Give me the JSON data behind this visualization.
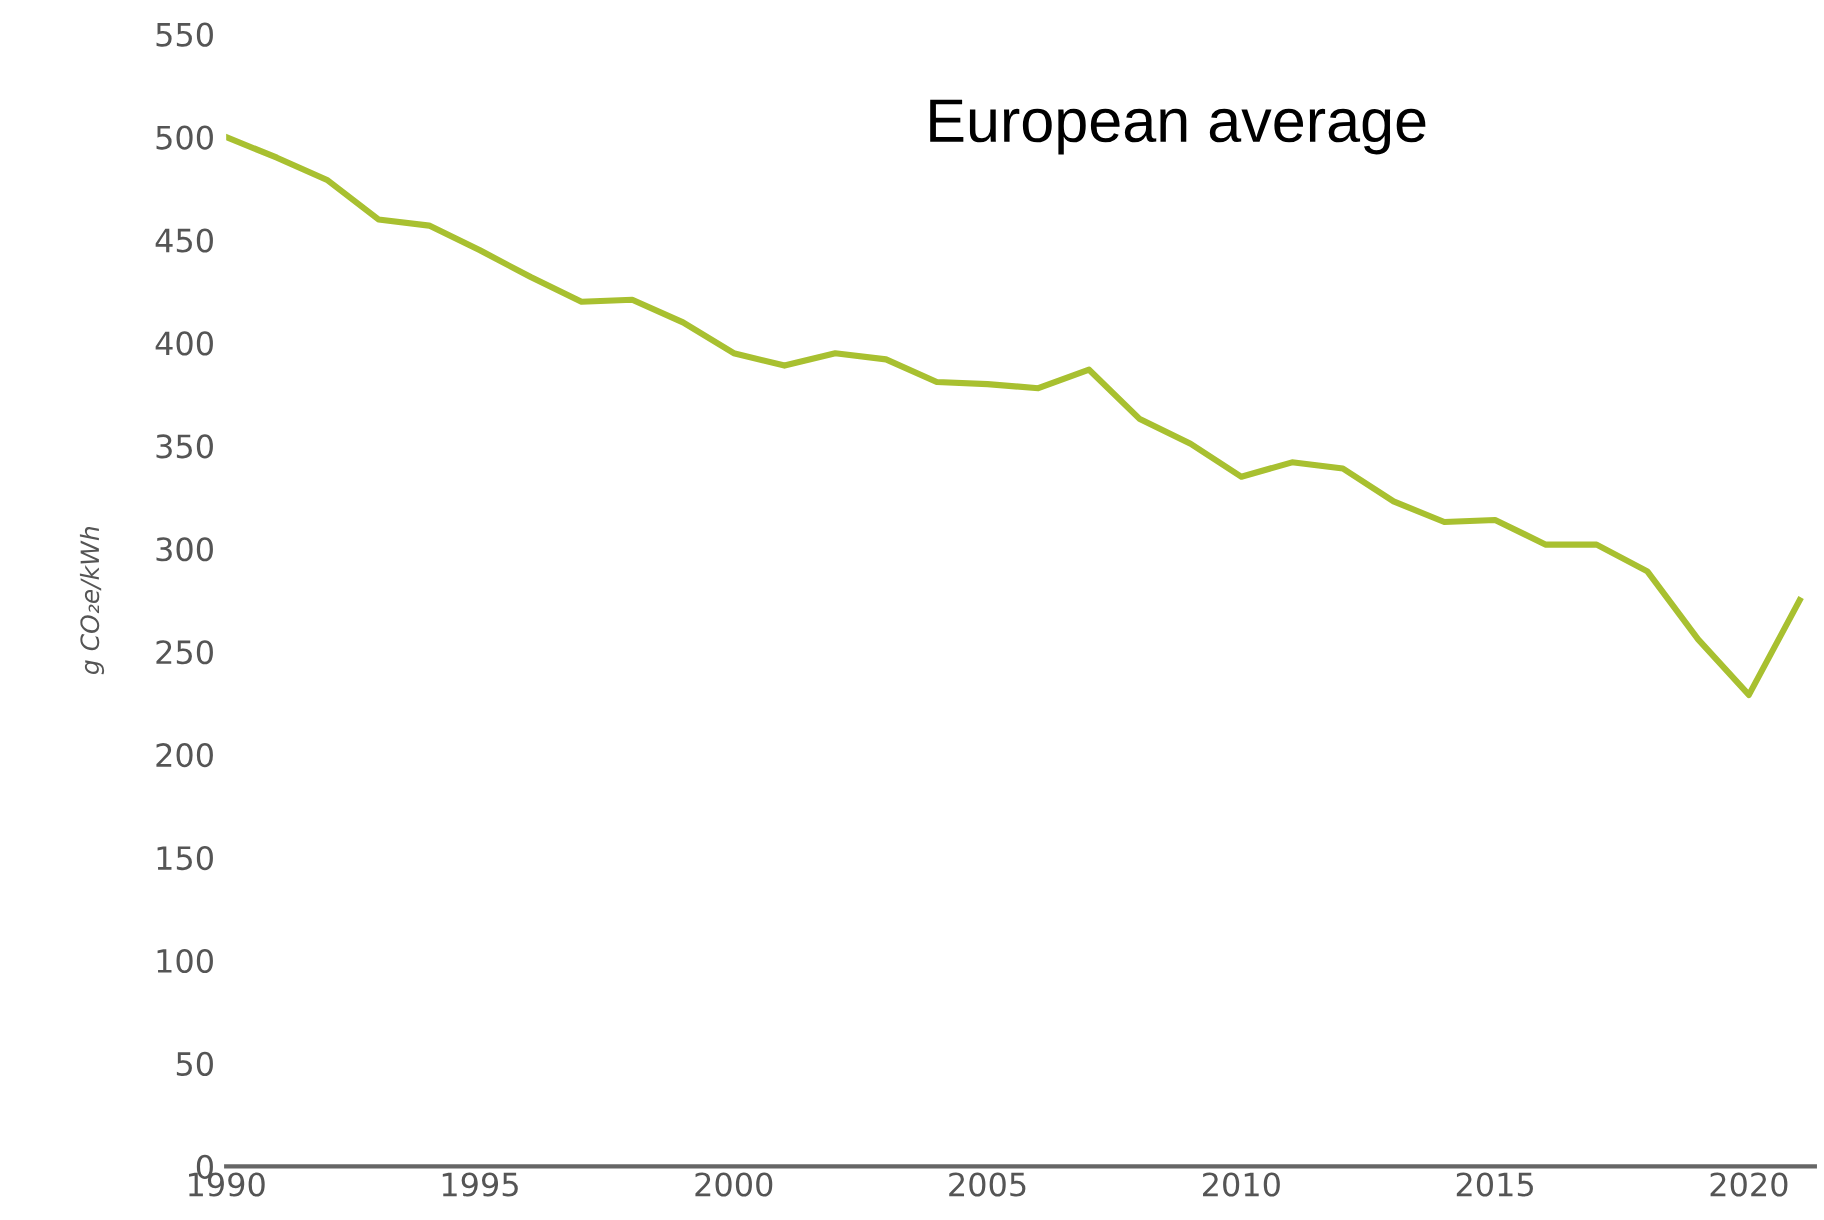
{
  "chart_data": {
    "type": "line",
    "ylabel": "g CO₂e/kWh",
    "annotations": [
      "European average"
    ],
    "x": [
      1990,
      1991,
      1992,
      1993,
      1994,
      1995,
      1996,
      1997,
      1998,
      1999,
      2000,
      2001,
      2002,
      2003,
      2004,
      2005,
      2006,
      2007,
      2008,
      2009,
      2010,
      2011,
      2012,
      2013,
      2014,
      2015,
      2016,
      2017,
      2018,
      2019,
      2020,
      2021
    ],
    "series": [
      {
        "color": "#a8c030",
        "values": [
          500,
          490,
          479,
          460,
          457,
          445,
          432,
          420,
          421,
          410,
          395,
          389,
          395,
          392,
          381,
          380,
          378,
          387,
          363,
          351,
          335,
          342,
          339,
          323,
          313,
          314,
          302,
          302,
          289,
          256,
          229,
          275
        ]
      }
    ],
    "xlim": [
      1990,
      2021.3
    ],
    "xticks": [
      1990,
      1995,
      2000,
      2005,
      2010,
      2015,
      2020
    ],
    "ylim": [
      0,
      550
    ],
    "yticks": [
      0,
      50,
      100,
      150,
      200,
      250,
      300,
      350,
      400,
      450,
      500,
      550
    ],
    "grid": false,
    "legend": false,
    "marker": "none",
    "line_style": "solid"
  }
}
